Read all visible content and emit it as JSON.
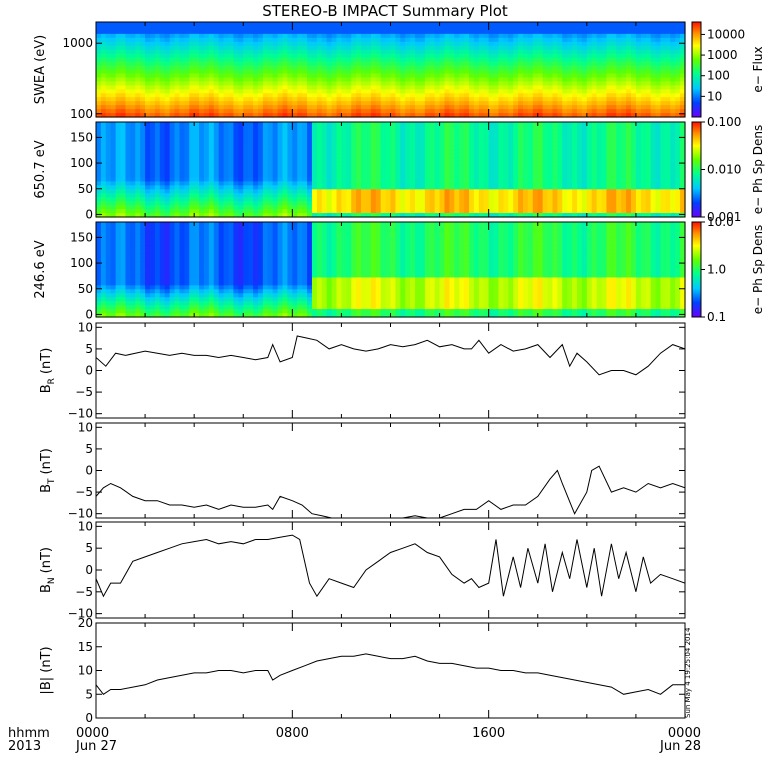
{
  "title": "STEREO-B IMPACT Summary Plot",
  "time_axis": {
    "row1_label": "hhmm",
    "row2_label": "2013",
    "ticks": [
      {
        "hhmm": "0000",
        "date": "Jun 27",
        "hours": 0
      },
      {
        "hhmm": "0800",
        "date": "",
        "hours": 8
      },
      {
        "hhmm": "1600",
        "date": "",
        "hours": 16
      },
      {
        "hhmm": "0000",
        "date": "Jun 28",
        "hours": 24
      }
    ],
    "range_hours": [
      0,
      24
    ]
  },
  "timestamp": "Sun May  4 19:25:04 2014",
  "colors": {
    "line": "#000000",
    "frame": "#000000"
  },
  "chart_data": [
    {
      "type": "heatmap",
      "ylabel": "SWEA (eV)",
      "scale": "log",
      "ylim": [
        90,
        2000
      ],
      "yticks": [
        {
          "v": 100,
          "label": "100"
        },
        {
          "v": 1000,
          "label": "1000"
        }
      ],
      "colorbar": {
        "label": "e− Flux",
        "scale": "log",
        "range": [
          1,
          40000
        ],
        "ticks": [
          {
            "v": 10,
            "label": "10"
          },
          {
            "v": 100,
            "label": "100"
          },
          {
            "v": 1000,
            "label": "1000"
          },
          {
            "v": 10000,
            "label": "10000"
          }
        ]
      },
      "description_gradient": "energy-flux spectrogram, high flux at low energy (red/orange) decreasing to blue at high energy"
    },
    {
      "type": "heatmap",
      "ylabel": "650.7 eV",
      "ylim": [
        -5,
        180
      ],
      "yticks": [
        {
          "v": 0,
          "label": "0"
        },
        {
          "v": 50,
          "label": "50"
        },
        {
          "v": 100,
          "label": "100"
        },
        {
          "v": 150,
          "label": "150"
        }
      ],
      "colorbar": {
        "label": "e− Ph Sp Dens",
        "scale": "log",
        "range": [
          0.001,
          0.1
        ],
        "ticks": [
          {
            "v": 0.001,
            "label": "0.001"
          },
          {
            "v": 0.01,
            "label": "0.010"
          },
          {
            "v": 0.1,
            "label": "0.100"
          }
        ]
      }
    },
    {
      "type": "heatmap",
      "ylabel": "246.6 eV",
      "ylim": [
        -5,
        180
      ],
      "yticks": [
        {
          "v": 0,
          "label": "0"
        },
        {
          "v": 50,
          "label": "50"
        },
        {
          "v": 100,
          "label": "100"
        },
        {
          "v": 150,
          "label": "150"
        }
      ],
      "colorbar": {
        "label": "e− Ph Sp Dens",
        "scale": "log",
        "range": [
          0.1,
          10
        ],
        "ticks": [
          {
            "v": 0.1,
            "label": "0.1"
          },
          {
            "v": 1,
            "label": "1.0"
          },
          {
            "v": 10,
            "label": "10.0"
          }
        ]
      }
    },
    {
      "type": "line",
      "ylabel": "B",
      "ylabel_sub": "R",
      "ylabel_unit": "(nT)",
      "ylim": [
        -11,
        11
      ],
      "yticks": [
        {
          "v": -10,
          "label": "−10"
        },
        {
          "v": -5,
          "label": "−5"
        },
        {
          "v": 0,
          "label": "0"
        },
        {
          "v": 5,
          "label": "5"
        },
        {
          "v": 10,
          "label": "10"
        }
      ],
      "x": [
        0,
        0.4,
        0.8,
        1.2,
        1.6,
        2,
        2.5,
        3,
        3.5,
        4,
        4.5,
        5,
        5.5,
        6,
        6.5,
        7,
        7.2,
        7.5,
        8,
        8.2,
        8.6,
        9,
        9.5,
        10,
        10.5,
        11,
        11.5,
        12,
        12.5,
        13,
        13.5,
        14,
        14.5,
        15,
        15.3,
        15.6,
        16,
        16.5,
        17,
        17.5,
        18,
        18.5,
        19,
        19.3,
        19.6,
        20,
        20.5,
        21,
        21.5,
        22,
        22.5,
        23,
        23.5,
        24
      ],
      "y": [
        3,
        1,
        4,
        3.5,
        4,
        4.5,
        4,
        3.5,
        4,
        3.5,
        3.5,
        3,
        3.5,
        3,
        2.5,
        3,
        6,
        2,
        3,
        8,
        7.5,
        7,
        5,
        6,
        5,
        4.5,
        5,
        6,
        5.5,
        6,
        7,
        5.5,
        6,
        5,
        5,
        7,
        4,
        6,
        4.5,
        5,
        6,
        3,
        6,
        1,
        4,
        2,
        -1,
        0,
        0,
        -1,
        1,
        4,
        6,
        5
      ]
    },
    {
      "type": "line",
      "ylabel": "B",
      "ylabel_sub": "T",
      "ylabel_unit": "(nT)",
      "ylim": [
        -11,
        11
      ],
      "yticks": [
        {
          "v": -10,
          "label": "−10"
        },
        {
          "v": -5,
          "label": "−5"
        },
        {
          "v": 0,
          "label": "0"
        },
        {
          "v": 5,
          "label": "5"
        },
        {
          "v": 10,
          "label": "10"
        }
      ],
      "x": [
        0,
        0.3,
        0.6,
        1,
        1.5,
        2,
        2.5,
        3,
        3.5,
        4,
        4.5,
        5,
        5.5,
        6,
        6.5,
        7,
        7.2,
        7.5,
        8,
        8.4,
        8.8,
        9.2,
        9.6,
        10,
        10.5,
        11,
        11.5,
        12,
        12.5,
        13,
        13.5,
        14,
        14.5,
        15,
        15.5,
        16,
        16.5,
        17,
        17.5,
        18,
        18.5,
        18.8,
        19,
        19.5,
        20,
        20.2,
        20.5,
        21,
        21.5,
        22,
        22.5,
        23,
        23.5,
        24
      ],
      "y": [
        -6,
        -4,
        -3,
        -4,
        -6,
        -7,
        -7,
        -8,
        -8,
        -8.5,
        -8,
        -9,
        -8,
        -8.5,
        -8.5,
        -8,
        -9,
        -6,
        -7,
        -8,
        -10,
        -10.5,
        -11,
        -11,
        -11,
        -11,
        -11,
        -11,
        -11,
        -10.5,
        -11,
        -11,
        -10,
        -9,
        -9,
        -7,
        -9,
        -8,
        -8,
        -6,
        -2,
        0,
        -3,
        -10,
        -5,
        0,
        1,
        -5,
        -4,
        -5,
        -3,
        -4,
        -3,
        -4
      ]
    },
    {
      "type": "line",
      "ylabel": "B",
      "ylabel_sub": "N",
      "ylabel_unit": "(nT)",
      "ylim": [
        -11,
        11
      ],
      "yticks": [
        {
          "v": -10,
          "label": "−10"
        },
        {
          "v": -5,
          "label": "−5"
        },
        {
          "v": 0,
          "label": "0"
        },
        {
          "v": 5,
          "label": "5"
        },
        {
          "v": 10,
          "label": "10"
        }
      ],
      "x": [
        0,
        0.3,
        0.6,
        1,
        1.5,
        2,
        2.5,
        3,
        3.5,
        4,
        4.5,
        5,
        5.5,
        6,
        6.5,
        7,
        7.5,
        8,
        8.3,
        8.7,
        9,
        9.5,
        10,
        10.5,
        11,
        11.5,
        12,
        12.5,
        13,
        13.5,
        14,
        14.5,
        15,
        15.3,
        15.6,
        16,
        16.3,
        16.6,
        17,
        17.3,
        17.6,
        18,
        18.3,
        18.6,
        19,
        19.3,
        19.6,
        20,
        20.3,
        20.6,
        21,
        21.3,
        21.6,
        22,
        22.3,
        22.6,
        23,
        23.5,
        24
      ],
      "y": [
        -2,
        -6,
        -3,
        -3,
        2,
        3,
        4,
        5,
        6,
        6.5,
        7,
        6,
        6.5,
        6,
        7,
        7,
        7.5,
        8,
        7,
        -3,
        -6,
        -2,
        -3,
        -4,
        0,
        2,
        4,
        5,
        6,
        4,
        3,
        -1,
        -3,
        -2,
        -4,
        -3,
        7,
        -6,
        3,
        -4,
        5,
        -3,
        6,
        -5,
        4,
        -2,
        7,
        -4,
        5,
        -6,
        6,
        -2,
        4,
        -5,
        3,
        -3,
        -1,
        -2,
        -3
      ]
    },
    {
      "type": "line",
      "ylabel": "|B| (nT)",
      "ylim": [
        0,
        20
      ],
      "yticks": [
        {
          "v": 0,
          "label": "0"
        },
        {
          "v": 5,
          "label": "5"
        },
        {
          "v": 10,
          "label": "10"
        },
        {
          "v": 15,
          "label": "15"
        },
        {
          "v": 20,
          "label": "20"
        }
      ],
      "x": [
        0,
        0.3,
        0.6,
        1,
        1.5,
        2,
        2.5,
        3,
        3.5,
        4,
        4.5,
        5,
        5.5,
        6,
        6.5,
        7,
        7.2,
        7.5,
        8,
        8.5,
        9,
        9.5,
        10,
        10.5,
        11,
        11.5,
        12,
        12.5,
        13,
        13.5,
        14,
        14.5,
        15,
        15.5,
        16,
        16.5,
        17,
        17.5,
        18,
        18.5,
        19,
        19.5,
        20,
        20.5,
        21,
        21.5,
        22,
        22.5,
        23,
        23.5,
        24
      ],
      "y": [
        7,
        5,
        6,
        6,
        6.5,
        7,
        8,
        8.5,
        9,
        9.5,
        9.5,
        10,
        10,
        9.5,
        10,
        10,
        8,
        9,
        10,
        11,
        12,
        12.5,
        13,
        13,
        13.5,
        13,
        12.5,
        12.5,
        13,
        12,
        11.5,
        11.5,
        11,
        10.5,
        10.5,
        10,
        10,
        9.5,
        9.5,
        9,
        8.5,
        8,
        7.5,
        7,
        6.5,
        5,
        5.5,
        6,
        5,
        7,
        7
      ]
    }
  ]
}
